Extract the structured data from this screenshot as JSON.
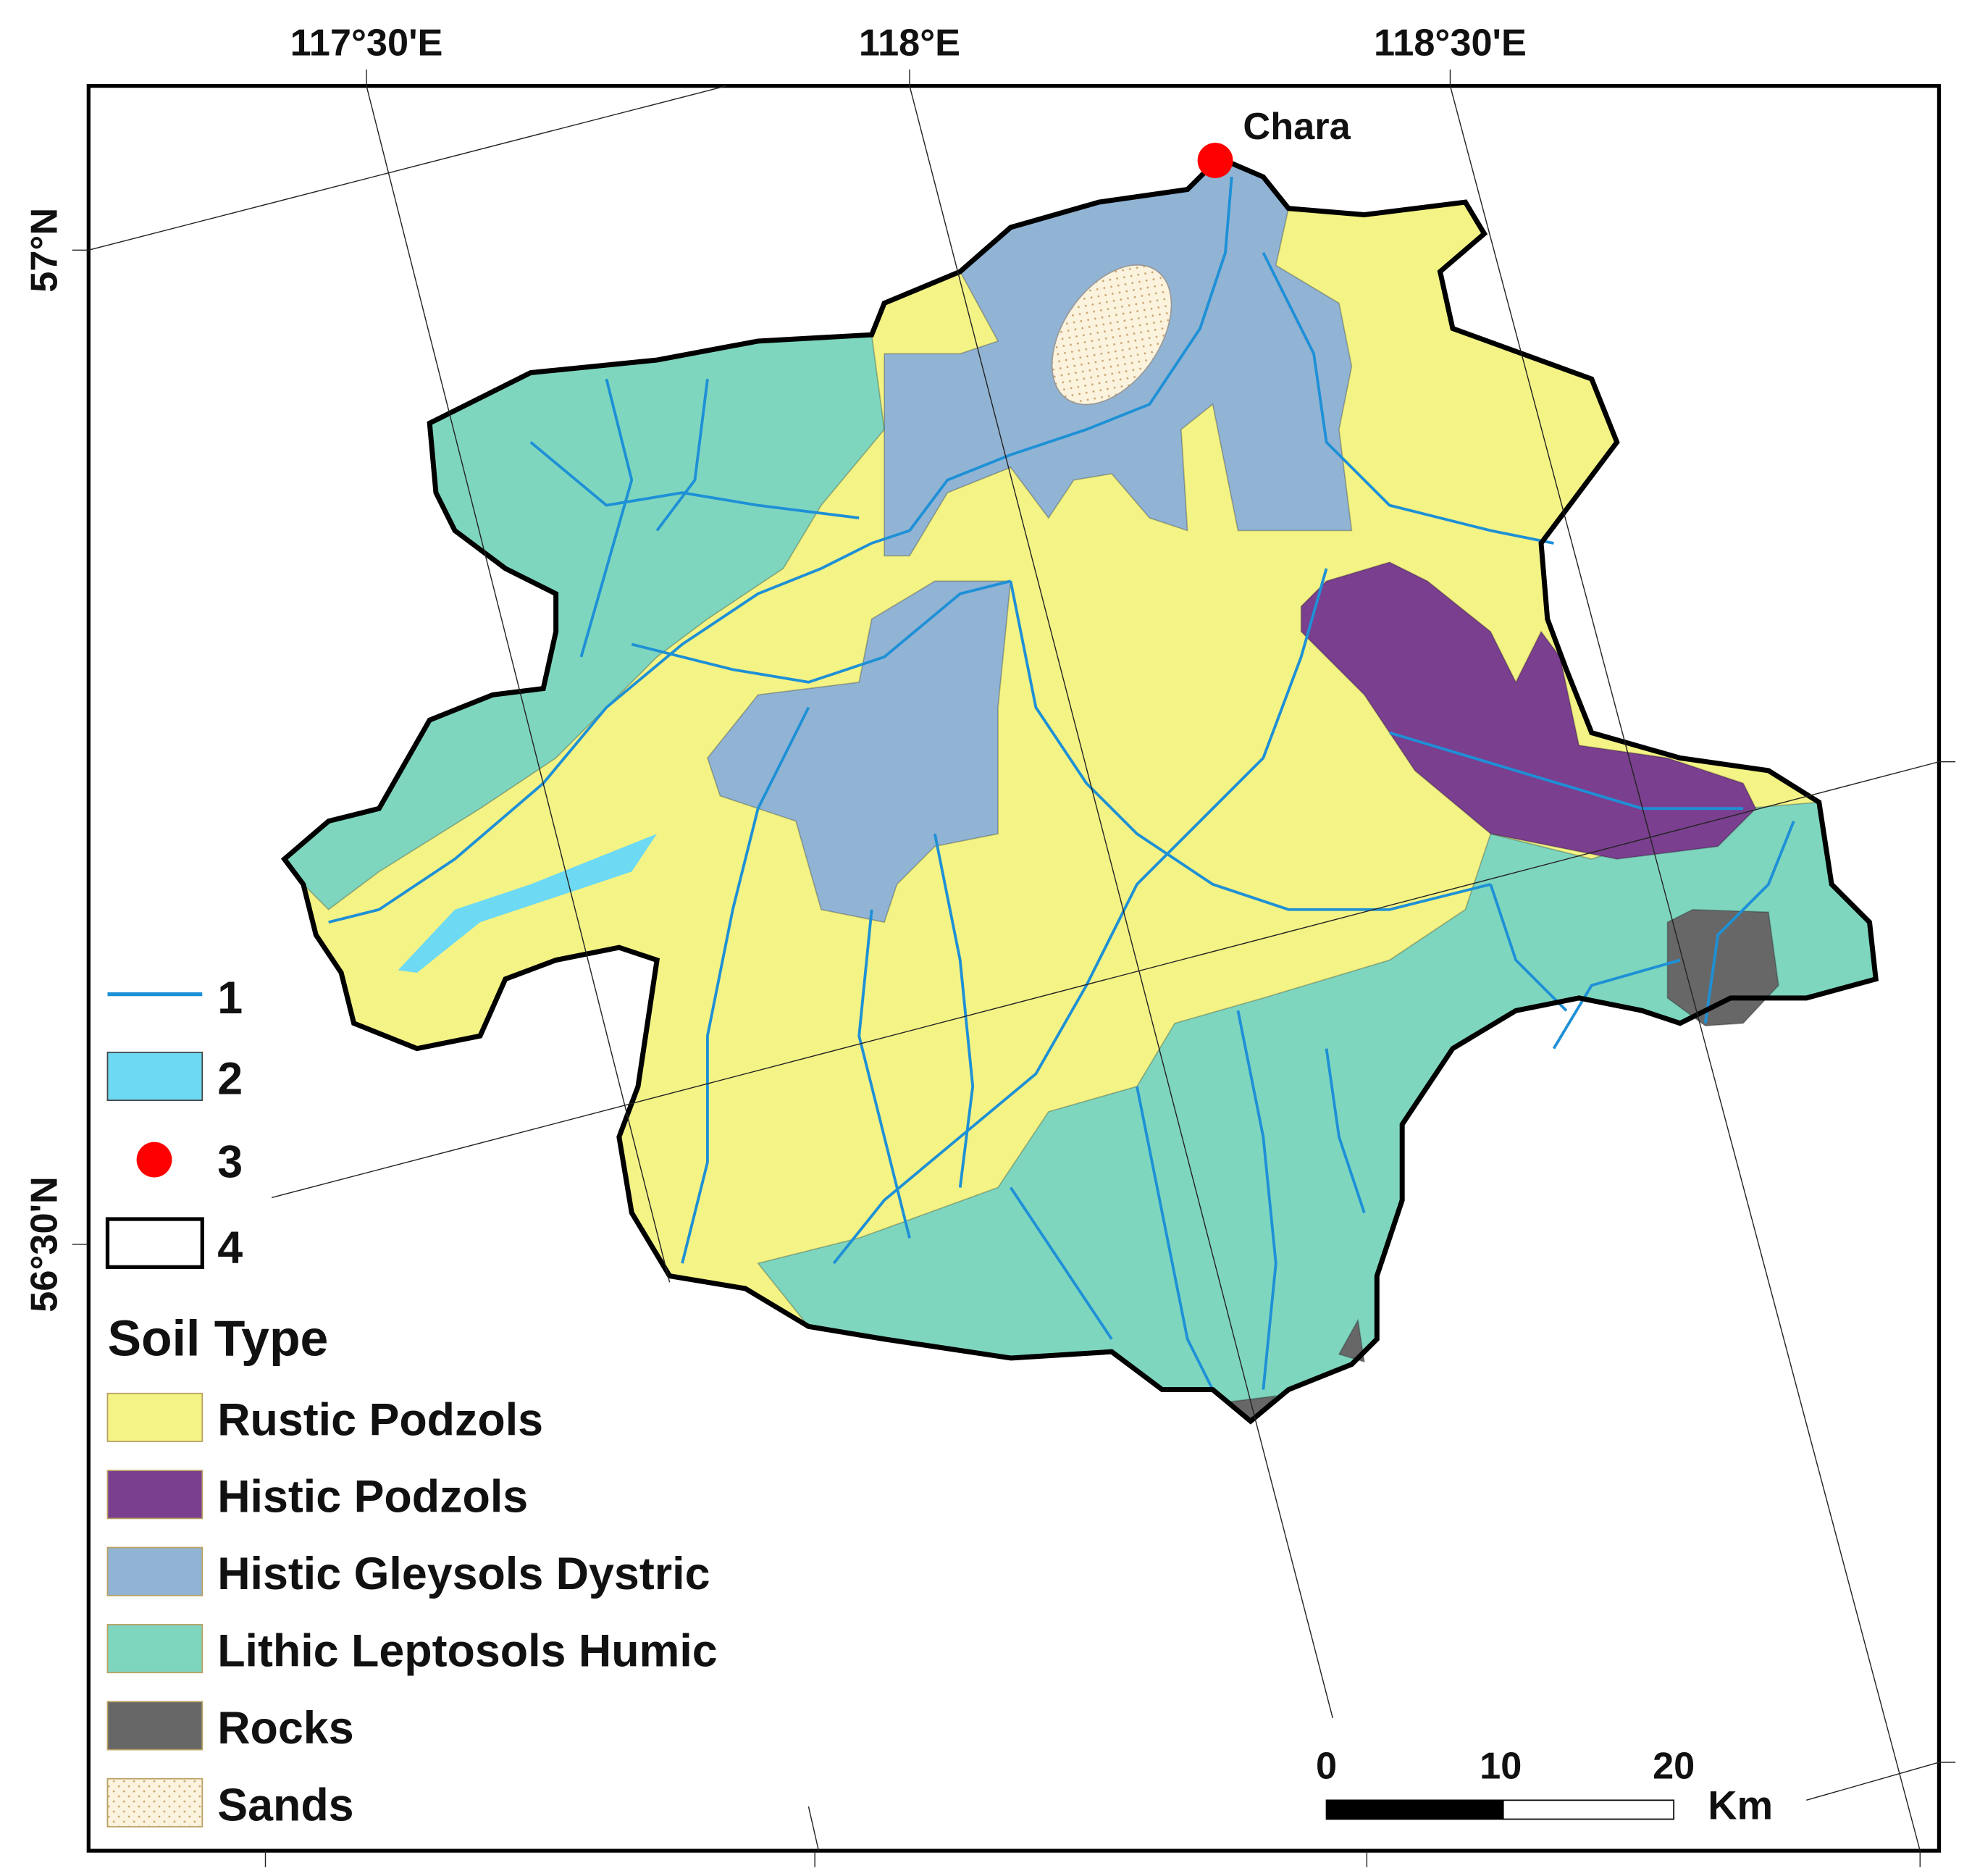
{
  "coordinates": {
    "top": [
      "117°30'E",
      "118°E",
      "118°30'E"
    ],
    "left": [
      "57°N",
      "56°30'N"
    ]
  },
  "place": {
    "label": "Chara"
  },
  "legend": {
    "symbols": [
      {
        "label": "1",
        "color": "#1e90d6"
      },
      {
        "label": "2",
        "color": "#6dd9f2"
      },
      {
        "label": "3",
        "color": "#ff0000"
      },
      {
        "label": "4",
        "color": "#000000"
      }
    ],
    "title": "Soil Type",
    "soil_types": [
      {
        "label": "Rustic Podzols",
        "color": "#f4f386"
      },
      {
        "label": "Histic Podzols",
        "color": "#7a3f8e"
      },
      {
        "label": "Histic Gleysols Dystric",
        "color": "#91b4d5"
      },
      {
        "label": "Lithic Leptosols Humic",
        "color": "#7fd6bf"
      },
      {
        "label": "Rocks",
        "color": "#676767"
      },
      {
        "label": "Sands",
        "color": "#fbf3de"
      }
    ]
  },
  "scale_bar": {
    "labels": [
      "0",
      "10",
      "20"
    ],
    "unit": "Km"
  }
}
